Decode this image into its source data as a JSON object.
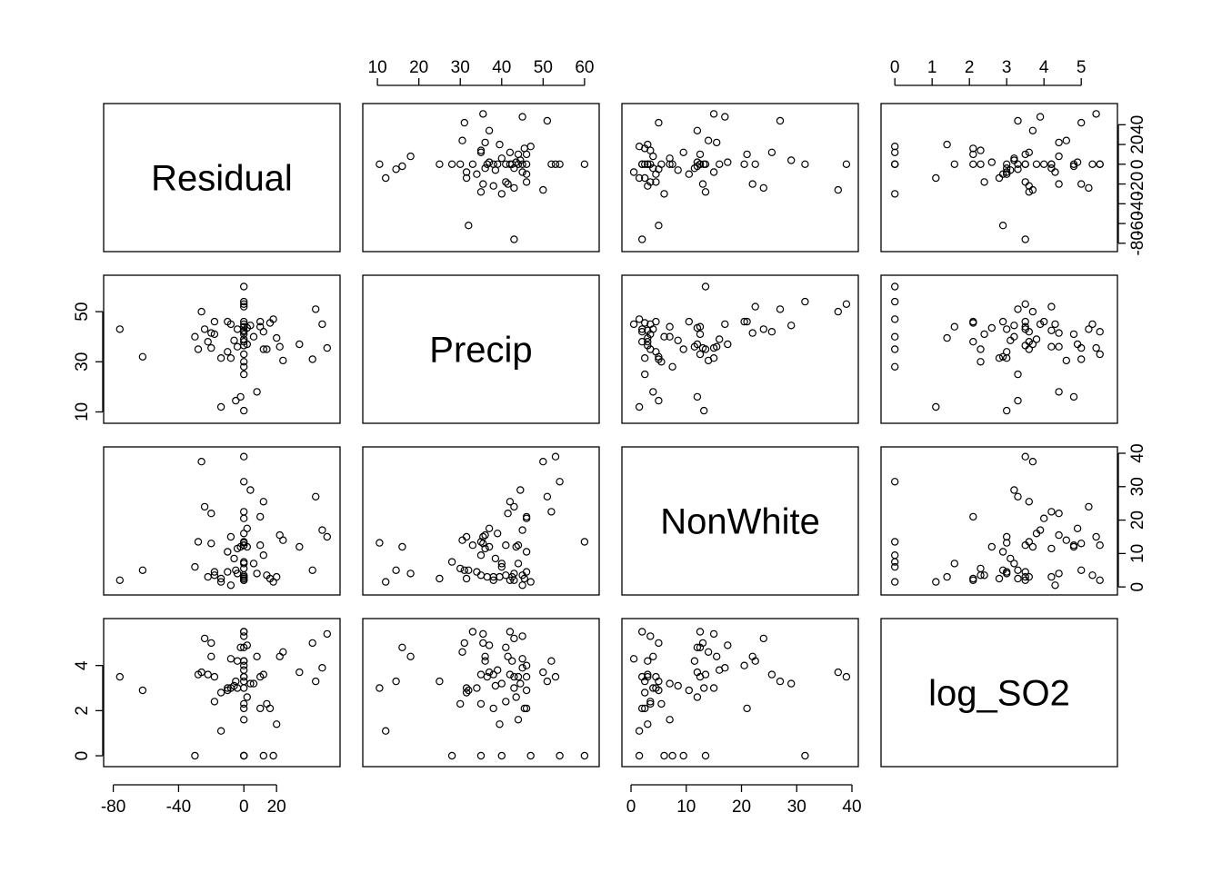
{
  "chart_data": {
    "type": "scatter",
    "title": "",
    "variables": [
      {
        "name": "Residual",
        "range": [
          -82,
          55
        ],
        "ticks": [
          -80,
          -40,
          0,
          20
        ],
        "tick_labels": [
          "-80",
          "-40",
          "0",
          "20"
        ],
        "right_ticks": [
          -80,
          -60,
          -40,
          -20,
          0,
          20,
          40
        ],
        "right_tick_labels": [
          "-80",
          "-60",
          "-40",
          "-20",
          "0",
          "20",
          "40"
        ]
      },
      {
        "name": "Precip",
        "range": [
          8,
          62
        ],
        "ticks": [
          10,
          20,
          30,
          40,
          50,
          60
        ],
        "tick_labels": [
          "10",
          "20",
          "30",
          "40",
          "50",
          "60"
        ],
        "right_ticks": [
          10,
          30,
          50
        ],
        "right_tick_labels": [
          "10",
          "30",
          "50"
        ]
      },
      {
        "name": "NonWhite",
        "range": [
          -0.5,
          40
        ],
        "ticks": [
          0,
          10,
          20,
          30,
          40
        ],
        "tick_labels": [
          "0",
          "10",
          "20",
          "30",
          "40"
        ],
        "right_ticks": [
          0,
          10,
          20,
          30,
          40
        ],
        "right_tick_labels": [
          "0",
          "10",
          "20",
          "30",
          "40"
        ]
      },
      {
        "name": "log_SO2",
        "range": [
          -0.2,
          5.8
        ],
        "ticks": [
          0,
          1,
          2,
          3,
          4,
          5
        ],
        "tick_labels": [
          "0",
          "1",
          "2",
          "3",
          "4",
          "5"
        ],
        "right_ticks": [
          0,
          2,
          4
        ],
        "right_tick_labels": [
          "0",
          "2",
          "4"
        ]
      }
    ],
    "observations": [
      [
        0,
        10.5,
        13.2,
        3.0
      ],
      [
        -14,
        12.0,
        1.5,
        1.1
      ],
      [
        -5,
        14.5,
        5.0,
        3.3
      ],
      [
        -2,
        16.0,
        12.0,
        4.8
      ],
      [
        8,
        18.0,
        4.0,
        4.4
      ],
      [
        0,
        25.0,
        2.5,
        3.3
      ],
      [
        0,
        28.0,
        7.5,
        0.0
      ],
      [
        0,
        30.0,
        5.5,
        2.3
      ],
      [
        24,
        30.5,
        14.0,
        4.6
      ],
      [
        42,
        31.0,
        5.0,
        5.0
      ],
      [
        -8,
        31.5,
        15.0,
        3.0
      ],
      [
        -14,
        31.5,
        2.5,
        2.8
      ],
      [
        -62,
        32.0,
        5.0,
        2.9
      ],
      [
        0,
        33.0,
        12.5,
        5.5
      ],
      [
        -10,
        34.0,
        4.5,
        3.0
      ],
      [
        14,
        35.0,
        3.5,
        2.3
      ],
      [
        12,
        35.0,
        9.5,
        0.0
      ],
      [
        -28,
        35.0,
        13.5,
        3.6
      ],
      [
        51,
        35.5,
        15.0,
        5.4
      ],
      [
        -20,
        35.5,
        13.0,
        5.0
      ],
      [
        22,
        36.0,
        15.5,
        4.4
      ],
      [
        -4,
        36.0,
        11.5,
        4.2
      ],
      [
        0,
        36.5,
        3.0,
        3.5
      ],
      [
        34,
        37.0,
        12.0,
        3.7
      ],
      [
        2,
        37.0,
        17.5,
        4.9
      ],
      [
        0,
        38.0,
        2.0,
        2.1
      ],
      [
        -22,
        38.0,
        3.0,
        3.6
      ],
      [
        0,
        39.0,
        16.0,
        3.8
      ],
      [
        6,
        40.0,
        7.0,
        3.2
      ],
      [
        0,
        41.0,
        12.5,
        4.8
      ],
      [
        -18,
        41.0,
        3.5,
        2.4
      ],
      [
        -20,
        41.5,
        22.0,
        4.4
      ],
      [
        0,
        42.0,
        2.0,
        5.5
      ],
      [
        12,
        42.0,
        25.5,
        3.6
      ],
      [
        0,
        42.5,
        3.0,
        4.2
      ],
      [
        -4,
        43.0,
        4.0,
        3.0
      ],
      [
        -76,
        43.0,
        2.0,
        3.5
      ],
      [
        -24,
        43.0,
        24.0,
        5.2
      ],
      [
        0,
        44.0,
        7.0,
        1.6
      ],
      [
        10,
        44.0,
        12.5,
        3.5
      ],
      [
        4,
        44.5,
        29.0,
        3.2
      ],
      [
        0,
        45.0,
        3.5,
        5.3
      ],
      [
        -8,
        45.0,
        0.5,
        4.3
      ],
      [
        48,
        45.0,
        17.0,
        3.9
      ],
      [
        16,
        45.5,
        2.5,
        2.1
      ],
      [
        -18,
        46.0,
        4.5,
        3.5
      ],
      [
        10,
        46.0,
        21.0,
        2.1
      ],
      [
        0,
        46.0,
        20.5,
        4.0
      ],
      [
        18,
        47.0,
        1.5,
        0.0
      ],
      [
        -26,
        50.0,
        37.5,
        3.7
      ],
      [
        44,
        51.0,
        27.0,
        3.3
      ],
      [
        0,
        52.0,
        22.5,
        4.2
      ],
      [
        0,
        53.0,
        39.0,
        3.5
      ],
      [
        0,
        54.0,
        31.5,
        0.0
      ],
      [
        0,
        60.0,
        13.5,
        0.0
      ],
      [
        -30,
        40.0,
        6.0,
        0.0
      ],
      [
        20,
        39.5,
        3.0,
        1.4
      ],
      [
        -10,
        46.0,
        10.5,
        2.9
      ],
      [
        2,
        43.5,
        12.0,
        2.6
      ],
      [
        -6,
        38.5,
        8.5,
        3.1
      ]
    ]
  }
}
